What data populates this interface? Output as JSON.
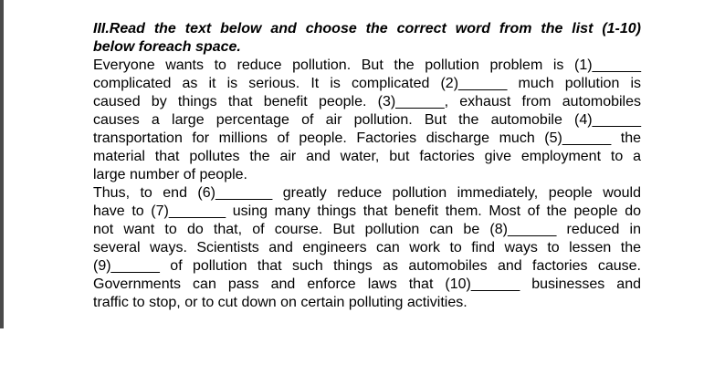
{
  "exercise": {
    "heading_lines": [
      "III.Read the text below and choose the correct word from the list (1-10)",
      "below foreach space."
    ],
    "paragraph1_lines": [
      "Everyone wants to reduce pollution. But the pollution problem is (1)______",
      "complicated as it is serious. It is complicated (2)______ much pollution is",
      "caused by things that benefit people. (3)______, exhaust from automobiles",
      "causes a large percentage of air pollution. But the automobile (4)______",
      "transportation for millions of people. Factories discharge much (5)______ the",
      "material that pollutes the air and water, but factories give employment to a",
      "large number of people."
    ],
    "paragraph2_lines": [
      "Thus, to end (6)_______ greatly reduce pollution immediately, people would",
      "have to (7)_______ using many things that benefit them. Most of the people do",
      "not want to do that, of course. But pollution can be (8)______ reduced in",
      "several ways. Scientists and engineers can work to find ways to lessen the",
      "(9)______ of pollution that such things as automobiles and factories cause.",
      "Governments can pass and enforce laws that (10)______ businesses and",
      "traffic to stop, or to cut down on certain polluting activities."
    ]
  }
}
